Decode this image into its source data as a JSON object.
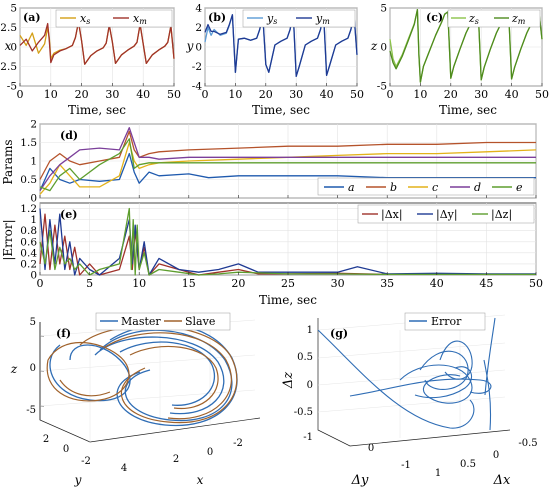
{
  "colors": {
    "x_slave": "#D4A017",
    "x_master": "#A0322B",
    "y_slave": "#5B9BD5",
    "y_master": "#1F3A93",
    "z_slave": "#8BC34A",
    "z_master": "#4E8B1E",
    "a": "#1F5AAE",
    "b": "#B5532B",
    "c": "#E3B21A",
    "d": "#7B3F9A",
    "e": "#5E9E2E",
    "err_x": "#A0322B",
    "err_y": "#1F3A93",
    "err_z": "#5E9E2E",
    "master": "#2F6DB5",
    "slave": "#A0622B",
    "error": "#2F6DB5"
  },
  "chart_data": [
    {
      "panel": "(a)",
      "type": "line",
      "ylabel": "x",
      "xlabel": "Time, sec",
      "xlim": [
        0,
        50
      ],
      "ylim": [
        -5,
        5
      ],
      "xticks": [
        0,
        10,
        20,
        30,
        40,
        50
      ],
      "yticks": [
        -5,
        -2.5,
        0,
        2.5,
        5
      ],
      "series": [
        {
          "name": "x_s",
          "x": [
            0,
            2,
            4,
            6,
            8,
            9,
            9.5,
            10,
            11,
            13,
            15,
            17,
            18,
            19,
            20,
            21,
            23,
            25,
            27,
            28,
            29,
            30,
            31,
            33,
            35,
            37,
            38,
            39,
            40,
            41,
            43,
            45,
            47,
            48,
            49,
            50
          ],
          "y": [
            1.5,
            0.2,
            1.8,
            -0.8,
            0.4,
            2.5,
            1.2,
            -1.5,
            -0.8,
            -0.4,
            -0.2,
            0.2,
            1.2,
            3.2,
            0.8,
            -2.2,
            -1.1,
            -0.5,
            -0.1,
            0.5,
            2.8,
            0.6,
            -2.1,
            -1.0,
            -0.4,
            0.1,
            0.6,
            2.9,
            0.4,
            -2.1,
            -1.0,
            -0.4,
            0.1,
            0.6,
            2.7,
            -1.5
          ]
        },
        {
          "name": "x_m",
          "x": [
            0,
            2,
            4,
            6,
            8,
            9,
            9.5,
            10,
            11,
            13,
            15,
            17,
            18,
            19,
            20,
            21,
            23,
            25,
            27,
            28,
            29,
            30,
            31,
            33,
            35,
            37,
            38,
            39,
            40,
            41,
            43,
            45,
            47,
            48,
            49,
            50
          ],
          "y": [
            0.2,
            1.0,
            -0.5,
            0.6,
            1.5,
            3.0,
            0.8,
            -2.0,
            -1.0,
            -0.5,
            -0.2,
            0.2,
            1.2,
            3.2,
            0.8,
            -2.2,
            -1.1,
            -0.5,
            -0.1,
            0.5,
            2.8,
            0.6,
            -2.1,
            -1.0,
            -0.4,
            0.1,
            0.6,
            2.9,
            0.4,
            -2.1,
            -1.0,
            -0.4,
            0.1,
            0.6,
            2.7,
            -1.5
          ]
        }
      ]
    },
    {
      "panel": "(b)",
      "type": "line",
      "ylabel": "y",
      "xlabel": "Time, sec",
      "xlim": [
        0,
        50
      ],
      "ylim": [
        -4,
        4
      ],
      "xticks": [
        0,
        10,
        20,
        30,
        40,
        50
      ],
      "yticks": [
        -4,
        -2,
        0,
        2,
        4
      ],
      "series": [
        {
          "name": "y_s",
          "x": [
            0,
            1,
            2,
            3,
            5,
            7,
            8,
            9,
            10,
            11,
            13,
            15,
            17,
            18,
            19,
            20,
            21,
            23,
            25,
            27,
            28,
            29,
            30,
            31,
            33,
            35,
            37,
            38,
            39,
            40,
            41,
            43,
            45,
            47,
            48,
            49,
            50
          ],
          "y": [
            0.5,
            2.0,
            1.2,
            1.8,
            1.2,
            1.4,
            2.2,
            3.3,
            -2.6,
            0.8,
            0.9,
            0.7,
            0.9,
            1.8,
            3.2,
            -1.8,
            -2.6,
            0.2,
            0.6,
            0.9,
            1.8,
            3.5,
            -3.0,
            -2.0,
            0.2,
            0.6,
            0.9,
            1.8,
            3.4,
            -2.9,
            -1.9,
            0.2,
            0.6,
            0.9,
            1.8,
            3.3,
            -0.8
          ]
        },
        {
          "name": "y_m",
          "x": [
            0,
            1,
            2,
            3,
            5,
            7,
            8,
            9,
            10,
            11,
            13,
            15,
            17,
            18,
            19,
            20,
            21,
            23,
            25,
            27,
            28,
            29,
            30,
            31,
            33,
            35,
            37,
            38,
            39,
            40,
            41,
            43,
            45,
            47,
            48,
            49,
            50
          ],
          "y": [
            1.5,
            2.3,
            1.6,
            1.6,
            1.3,
            1.5,
            2.3,
            3.3,
            -2.6,
            0.8,
            0.9,
            0.7,
            0.9,
            1.8,
            3.2,
            -1.8,
            -2.6,
            0.2,
            0.6,
            0.9,
            1.8,
            3.5,
            -3.0,
            -2.0,
            0.2,
            0.6,
            0.9,
            1.8,
            3.4,
            -2.9,
            -1.9,
            0.2,
            0.6,
            0.9,
            1.8,
            3.3,
            -0.8
          ]
        }
      ]
    },
    {
      "panel": "(c)",
      "type": "line",
      "ylabel": "z",
      "xlabel": "Time, sec",
      "xlim": [
        0,
        50
      ],
      "ylim": [
        -5,
        5
      ],
      "xticks": [
        0,
        10,
        20,
        30,
        40,
        50
      ],
      "yticks": [
        -5,
        0,
        5
      ],
      "series": [
        {
          "name": "z_s",
          "x": [
            0,
            1,
            2,
            4,
            6,
            8,
            9,
            9.5,
            10,
            11,
            13,
            15,
            17,
            18,
            19,
            20,
            21,
            23,
            25,
            27,
            28,
            29,
            30,
            31,
            33,
            35,
            37,
            38,
            39,
            40,
            41,
            43,
            45,
            47,
            48,
            49,
            50
          ],
          "y": [
            1.0,
            -1.5,
            -2.5,
            -1.0,
            1.0,
            3.0,
            4.8,
            -1.0,
            -4.5,
            -2.5,
            -0.5,
            1.5,
            3.2,
            4.2,
            4.5,
            -4.0,
            -2.5,
            -0.3,
            1.8,
            3.4,
            4.3,
            4.6,
            -4.2,
            -2.6,
            -0.3,
            1.8,
            3.4,
            4.3,
            4.6,
            -4.1,
            -2.6,
            -0.3,
            1.8,
            3.4,
            4.2,
            4.4,
            1.0
          ]
        },
        {
          "name": "z_m",
          "x": [
            0,
            1,
            2,
            4,
            6,
            8,
            9,
            9.5,
            10,
            11,
            13,
            15,
            17,
            18,
            19,
            20,
            21,
            23,
            25,
            27,
            28,
            29,
            30,
            31,
            33,
            35,
            37,
            38,
            39,
            40,
            41,
            43,
            45,
            47,
            48,
            49,
            50
          ],
          "y": [
            -0.5,
            -2.0,
            -2.8,
            -1.2,
            0.8,
            2.9,
            4.8,
            -1.0,
            -4.5,
            -2.5,
            -0.5,
            1.5,
            3.2,
            4.2,
            4.5,
            -4.0,
            -2.5,
            -0.3,
            1.8,
            3.4,
            4.3,
            4.6,
            -4.2,
            -2.6,
            -0.3,
            1.8,
            3.4,
            4.3,
            4.6,
            -4.1,
            -2.6,
            -0.3,
            1.8,
            3.4,
            4.2,
            4.4,
            1.0
          ]
        }
      ]
    },
    {
      "panel": "(d)",
      "type": "line",
      "ylabel": "Params",
      "xlim": [
        0,
        50
      ],
      "ylim": [
        0,
        2
      ],
      "xticks": [
        0,
        5,
        10,
        15,
        20,
        25,
        30,
        35,
        40,
        45,
        50
      ],
      "yticks": [
        0,
        0.5,
        1,
        1.5,
        2
      ],
      "legend_position": "bottom-right",
      "series": [
        {
          "name": "a",
          "x": [
            0,
            1,
            2,
            3,
            4,
            6,
            8,
            9,
            9.5,
            10,
            11,
            12,
            15,
            17,
            20,
            25,
            30,
            35,
            40,
            45,
            50
          ],
          "y": [
            0.2,
            0.8,
            0.5,
            0.4,
            0.5,
            0.45,
            0.5,
            1.2,
            0.7,
            0.4,
            0.7,
            0.6,
            0.65,
            0.55,
            0.6,
            0.6,
            0.6,
            0.55,
            0.55,
            0.55,
            0.55
          ]
        },
        {
          "name": "b",
          "x": [
            0,
            1,
            2,
            3,
            4,
            6,
            8,
            9,
            9.5,
            10,
            11,
            12,
            15,
            20,
            25,
            30,
            35,
            40,
            45,
            50
          ],
          "y": [
            0.5,
            1.0,
            1.2,
            1.0,
            0.9,
            1.0,
            1.1,
            1.8,
            1.3,
            1.1,
            1.2,
            1.25,
            1.3,
            1.35,
            1.4,
            1.4,
            1.45,
            1.45,
            1.5,
            1.5
          ]
        },
        {
          "name": "c",
          "x": [
            0,
            1,
            2,
            3,
            4,
            6,
            8,
            9,
            9.5,
            10,
            11,
            12,
            15,
            20,
            25,
            30,
            35,
            40,
            45,
            50
          ],
          "y": [
            0.1,
            0.4,
            0.9,
            0.6,
            0.3,
            0.3,
            0.6,
            1.5,
            1.0,
            0.8,
            0.9,
            0.95,
            1.0,
            1.05,
            1.1,
            1.15,
            1.2,
            1.2,
            1.25,
            1.3
          ]
        },
        {
          "name": "d",
          "x": [
            0,
            1,
            2,
            3,
            4,
            6,
            8,
            9,
            9.5,
            10,
            11,
            12,
            15,
            20,
            25,
            30,
            35,
            40,
            45,
            50
          ],
          "y": [
            0.2,
            0.6,
            0.9,
            1.1,
            1.3,
            1.35,
            1.3,
            1.9,
            1.5,
            1.1,
            1.1,
            1.05,
            1.1,
            1.1,
            1.1,
            1.1,
            1.1,
            1.1,
            1.1,
            1.1
          ]
        },
        {
          "name": "e",
          "x": [
            0,
            1,
            2,
            3,
            4,
            6,
            8,
            9,
            9.5,
            10,
            11,
            12,
            15,
            20,
            25,
            30,
            35,
            40,
            45,
            50
          ],
          "y": [
            0.3,
            0.2,
            0.6,
            0.8,
            0.5,
            0.9,
            1.2,
            1.6,
            0.8,
            0.9,
            0.95,
            0.95,
            0.95,
            0.95,
            0.95,
            0.95,
            0.95,
            0.95,
            0.95,
            0.95
          ]
        }
      ]
    },
    {
      "panel": "(e)",
      "type": "line",
      "ylabel": "|Error|",
      "xlabel": "Time, sec",
      "xlim": [
        0,
        50
      ],
      "ylim": [
        0,
        1.3
      ],
      "xticks": [
        0,
        5,
        10,
        15,
        20,
        25,
        30,
        35,
        40,
        45,
        50
      ],
      "yticks": [
        0,
        0.2,
        0.4,
        0.6,
        0.8,
        1,
        1.2
      ],
      "legend_position": "top-right",
      "series": [
        {
          "name": "|Δx|",
          "x": [
            0,
            0.5,
            1,
            1.5,
            2,
            2.5,
            3,
            3.5,
            4,
            5,
            6,
            8,
            9,
            9.3,
            9.6,
            10,
            10.5,
            11,
            12,
            14,
            16,
            18,
            20,
            22,
            25,
            30,
            35,
            40,
            45,
            50
          ],
          "y": [
            0.2,
            1.1,
            0.1,
            0.9,
            0.2,
            0.7,
            0.1,
            0.5,
            0.0,
            0.2,
            0.0,
            0.1,
            0.7,
            0.1,
            0.8,
            0.1,
            0.5,
            0.0,
            0.2,
            0.1,
            0.0,
            0.05,
            0.1,
            0.02,
            0.02,
            0.03,
            0.01,
            0.02,
            0.01,
            0.01
          ]
        },
        {
          "name": "|Δy|",
          "x": [
            0,
            0.5,
            1,
            1.5,
            2,
            2.5,
            3,
            3.5,
            4,
            5,
            6,
            8,
            9,
            9.3,
            9.6,
            10,
            10.5,
            11,
            12,
            14,
            16,
            18,
            20,
            22,
            25,
            30,
            32,
            35,
            40,
            45,
            50
          ],
          "y": [
            1.2,
            0.1,
            1.0,
            0.2,
            1.1,
            0.1,
            0.6,
            0.0,
            0.3,
            0.1,
            0.0,
            0.3,
            1.0,
            0.2,
            0.9,
            0.1,
            0.6,
            0.0,
            0.3,
            0.1,
            0.05,
            0.1,
            0.2,
            0.05,
            0.05,
            0.05,
            0.15,
            0.02,
            0.03,
            0.02,
            0.02
          ]
        },
        {
          "name": "|Δz|",
          "x": [
            0,
            0.5,
            1,
            1.5,
            2,
            2.5,
            3,
            3.5,
            4,
            5,
            6,
            8,
            9,
            9.2,
            9.4,
            9.6,
            9.8,
            10,
            10.5,
            11,
            12,
            14,
            16,
            18,
            20,
            25,
            30,
            35,
            40,
            45,
            50
          ],
          "y": [
            0.6,
            0.2,
            0.8,
            0.1,
            0.5,
            0.2,
            0.3,
            0.1,
            0.2,
            0.0,
            0.1,
            0.2,
            1.2,
            0.1,
            1.0,
            0.0,
            0.9,
            0.1,
            0.4,
            0.0,
            0.1,
            0.05,
            0.0,
            0.02,
            0.05,
            0.02,
            0.02,
            0.01,
            0.01,
            0.01,
            0.01
          ]
        }
      ]
    },
    {
      "panel": "(f)",
      "type": "line",
      "projection": "3d",
      "zlabel": "z",
      "ylabel": "y",
      "xlabel": "x",
      "zticks": [
        -5,
        0,
        5
      ],
      "yticks": [
        2,
        0,
        -2
      ],
      "xticks": [
        4,
        2,
        0,
        -2
      ],
      "legend_position": "top",
      "series": [
        {
          "name": "Master",
          "x": [],
          "y": []
        },
        {
          "name": "Slave",
          "x": [],
          "y": []
        }
      ]
    },
    {
      "panel": "(g)",
      "type": "line",
      "projection": "3d",
      "zlabel": "Δz",
      "ylabel": "Δy",
      "xlabel": "Δx",
      "zticks": [
        1,
        0.5,
        0,
        -0.5,
        -1
      ],
      "yticks": [
        0,
        -1
      ],
      "xticks": [
        1,
        0.5,
        0,
        -0.5
      ],
      "legend_position": "top-right",
      "series": [
        {
          "name": "Error",
          "x": [],
          "y": []
        }
      ]
    }
  ]
}
